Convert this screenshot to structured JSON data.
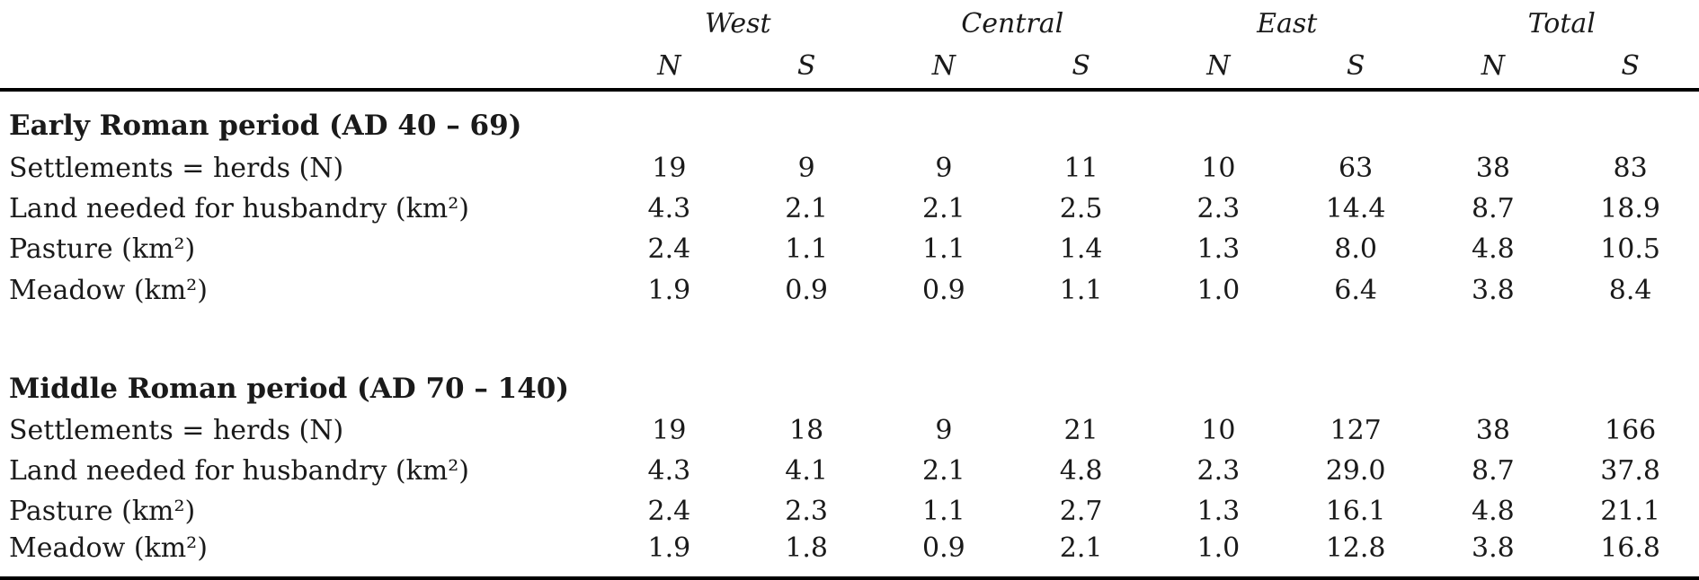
{
  "table": {
    "column_groups": [
      {
        "label": "West",
        "subcols": [
          "N",
          "S"
        ]
      },
      {
        "label": "Central",
        "subcols": [
          "N",
          "S"
        ]
      },
      {
        "label": "East",
        "subcols": [
          "N",
          "S"
        ]
      },
      {
        "label": "Total",
        "subcols": [
          "N",
          "S"
        ]
      }
    ],
    "sections": [
      {
        "title": "Early Roman period (AD 40 – 69)",
        "rows": [
          {
            "label": "Settlements = herds (N)",
            "values": [
              "19",
              "9",
              "9",
              "11",
              "10",
              "63",
              "38",
              "83"
            ]
          },
          {
            "label": "Land needed for husbandry (km²)",
            "values": [
              "4.3",
              "2.1",
              "2.1",
              "2.5",
              "2.3",
              "14.4",
              "8.7",
              "18.9"
            ]
          },
          {
            "label": "Pasture (km²)",
            "values": [
              "2.4",
              "1.1",
              "1.1",
              "1.4",
              "1.3",
              "8.0",
              "4.8",
              "10.5"
            ]
          },
          {
            "label": "Meadow (km²)",
            "values": [
              "1.9",
              "0.9",
              "0.9",
              "1.1",
              "1.0",
              "6.4",
              "3.8",
              "8.4"
            ]
          }
        ]
      },
      {
        "title": "Middle Roman period (AD 70 – 140)",
        "rows": [
          {
            "label": "Settlements = herds (N)",
            "values": [
              "19",
              "18",
              "9",
              "21",
              "10",
              "127",
              "38",
              "166"
            ]
          },
          {
            "label": "Land needed for husbandry (km²)",
            "values": [
              "4.3",
              "4.1",
              "2.1",
              "4.8",
              "2.3",
              "29.0",
              "8.7",
              "37.8"
            ]
          },
          {
            "label": "Pasture (km²)",
            "values": [
              "2.4",
              "2.3",
              "1.1",
              "2.7",
              "1.3",
              "16.1",
              "4.8",
              "21.1"
            ]
          },
          {
            "label": "Meadow (km²)",
            "values": [
              "1.9",
              "1.8",
              "0.9",
              "2.1",
              "1.0",
              "12.8",
              "3.8",
              "16.8"
            ]
          }
        ]
      }
    ]
  },
  "colors": {
    "text": "#1a1a1a",
    "background": "#ffffff",
    "rule": "#000000"
  }
}
